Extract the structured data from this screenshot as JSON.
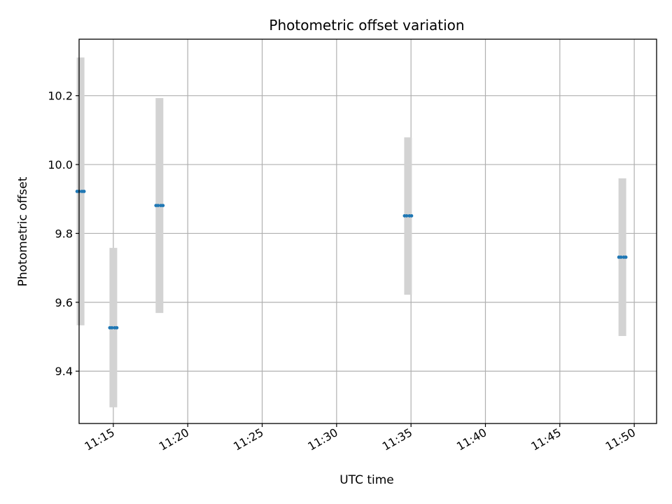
{
  "chart_data": {
    "type": "scatter",
    "title": "Photometric offset variation",
    "xlabel": "UTC time",
    "ylabel": "Photometric offset",
    "x_ticks": [
      "11:15",
      "11:20",
      "11:25",
      "11:30",
      "11:35",
      "11:40",
      "11:45",
      "11:50"
    ],
    "x_tick_minutes": [
      15,
      20,
      25,
      30,
      35,
      40,
      45,
      50
    ],
    "xlim": [
      "11:12.7",
      "11:51.5"
    ],
    "xlim_minutes": [
      12.7,
      51.5
    ],
    "y_ticks": [
      "9.4",
      "9.6",
      "9.8",
      "10.0",
      "10.2"
    ],
    "y_tick_values": [
      9.4,
      9.6,
      9.8,
      10.0,
      10.2
    ],
    "ylim": [
      9.248,
      10.364
    ],
    "grid": true,
    "series": [
      {
        "marker_color": "#1f77b4",
        "errorbar_color": "#d3d3d3",
        "points": [
          {
            "time": "11:12.8",
            "minute": 12.8,
            "y": 9.922,
            "ylow": 9.533,
            "yhigh": 10.311
          },
          {
            "time": "11:15.0",
            "minute": 15.0,
            "y": 9.526,
            "ylow": 9.295,
            "yhigh": 9.758
          },
          {
            "time": "11:18.1",
            "minute": 18.1,
            "y": 9.881,
            "ylow": 9.569,
            "yhigh": 10.193
          },
          {
            "time": "11:34.8",
            "minute": 34.8,
            "y": 9.851,
            "ylow": 9.622,
            "yhigh": 10.079
          },
          {
            "time": "11:49.2",
            "minute": 49.2,
            "y": 9.731,
            "ylow": 9.502,
            "yhigh": 9.96
          }
        ]
      }
    ]
  }
}
